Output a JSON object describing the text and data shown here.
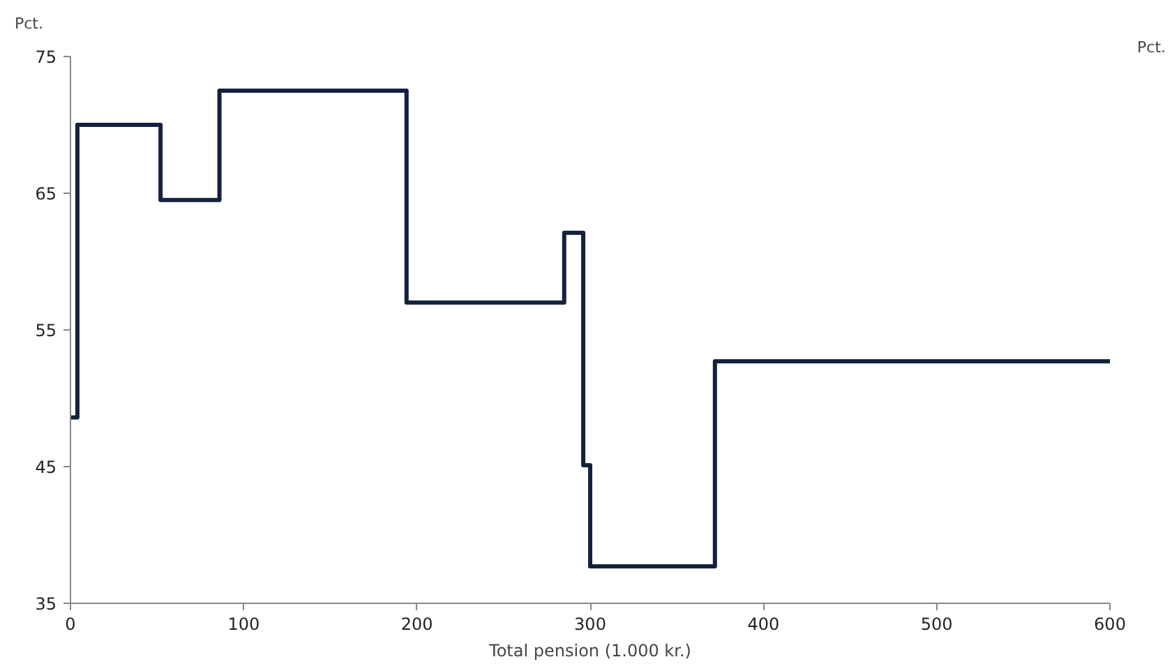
{
  "chart_data": {
    "type": "step",
    "xlabel": "Total pension (1.000 kr.)",
    "ylabel": "Pct.",
    "y2label": "Pct.",
    "x": [
      0,
      4,
      52,
      86,
      194,
      285,
      296,
      300,
      372,
      600
    ],
    "series": [
      {
        "color": "#14213d",
        "values": [
          48.6,
          70,
          64.5,
          72.5,
          57,
          62.1,
          45.1,
          37.7,
          52.7,
          52.7
        ]
      }
    ],
    "xlim": [
      0,
      600
    ],
    "xticks": [
      0,
      100,
      200,
      300,
      400,
      500,
      600
    ],
    "ylim": [
      35,
      75
    ],
    "yticks": [
      35,
      45,
      55,
      65,
      75
    ],
    "grid": false
  }
}
